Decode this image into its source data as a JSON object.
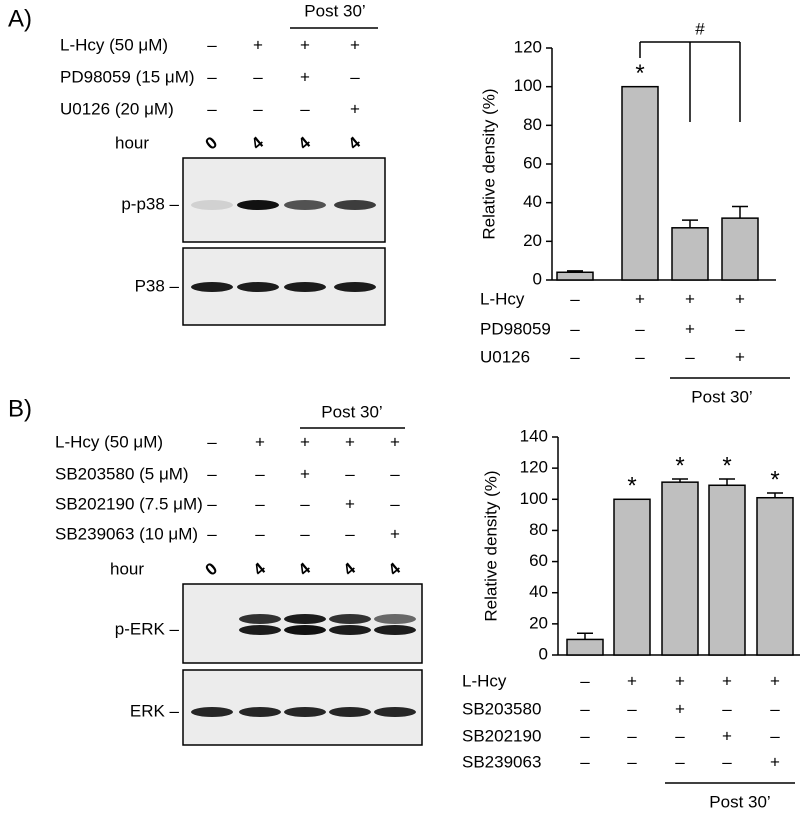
{
  "chart_data": [
    {
      "type": "bar",
      "ylabel": "Relative density (%)",
      "color": "#bfbfbf",
      "values": [
        4,
        100,
        27,
        32
      ],
      "errors": [
        0.7,
        0,
        4,
        6
      ],
      "star_labels": [
        null,
        "*",
        null,
        null
      ],
      "bracket_label": "#",
      "ylim": [
        0,
        120
      ],
      "yticks": [
        0,
        20,
        40,
        60,
        80,
        100,
        120
      ],
      "treatments": [
        {
          "name": "L-Hcy",
          "marks": [
            "–",
            "+",
            "+",
            "+"
          ]
        },
        {
          "name": "PD98059",
          "marks": [
            "–",
            "–",
            "+",
            "–"
          ]
        },
        {
          "name": "U0126",
          "marks": [
            "–",
            "–",
            "–",
            "+"
          ]
        }
      ],
      "group_label": "Post 30’"
    },
    {
      "type": "bar",
      "ylabel": "Relative density (%)",
      "color": "#bfbfbf",
      "values": [
        10,
        100,
        111,
        109,
        101
      ],
      "errors": [
        4,
        0,
        2,
        4,
        3
      ],
      "star_labels": [
        null,
        "*",
        "*",
        "*",
        "*"
      ],
      "ylim": [
        0,
        140
      ],
      "yticks": [
        0,
        20,
        40,
        60,
        80,
        100,
        120,
        140
      ],
      "treatments": [
        {
          "name": "L-Hcy",
          "marks": [
            "–",
            "+",
            "+",
            "+",
            "+"
          ]
        },
        {
          "name": "SB203580",
          "marks": [
            "–",
            "–",
            "+",
            "–",
            "–"
          ]
        },
        {
          "name": "SB202190",
          "marks": [
            "–",
            "–",
            "–",
            "+",
            "–"
          ]
        },
        {
          "name": "SB239063",
          "marks": [
            "–",
            "–",
            "–",
            "–",
            "+"
          ]
        }
      ],
      "group_label": "Post 30’"
    }
  ],
  "blots": [
    {
      "panel_label": "A)",
      "group_label": "Post 30’",
      "conditions": [
        {
          "name": "L-Hcy (50 μM)",
          "marks": [
            "–",
            "+",
            "+",
            "+"
          ]
        },
        {
          "name": "PD98059 (15 μM)",
          "marks": [
            "–",
            "–",
            "+",
            "–"
          ]
        },
        {
          "name": "U0126 (20 μM)",
          "marks": [
            "–",
            "–",
            "–",
            "+"
          ]
        }
      ],
      "hour": {
        "label": "hour",
        "values": [
          "0",
          "4",
          "4",
          "4"
        ]
      },
      "bands": [
        "p-p38 –",
        "P38 –"
      ]
    },
    {
      "panel_label": "B)",
      "group_label": "Post 30’",
      "conditions": [
        {
          "name": "L-Hcy (50 μM)",
          "marks": [
            "–",
            "+",
            "+",
            "+",
            "+"
          ]
        },
        {
          "name": "SB203580 (5 μM)",
          "marks": [
            "–",
            "–",
            "+",
            "–",
            "–"
          ]
        },
        {
          "name": "SB202190 (7.5 μM)",
          "marks": [
            "–",
            "–",
            "–",
            "+",
            "–"
          ]
        },
        {
          "name": "SB239063 (10 μM)",
          "marks": [
            "–",
            "–",
            "–",
            "–",
            "+"
          ]
        }
      ],
      "hour": {
        "label": "hour",
        "values": [
          "0",
          "4",
          "4",
          "4",
          "4"
        ]
      },
      "bands": [
        "p-ERK –",
        "ERK –"
      ]
    }
  ]
}
